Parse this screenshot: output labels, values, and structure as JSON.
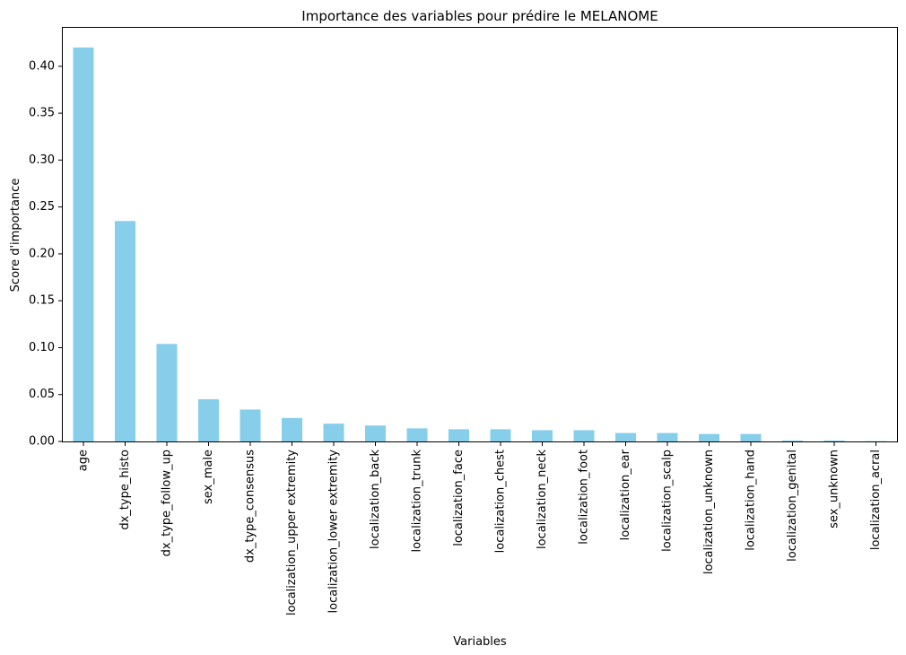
{
  "chart_data": {
    "type": "bar",
    "title": "Importance des variables pour prédire le MELANOME",
    "xlabel": "Variables",
    "ylabel": "Score d'importance",
    "categories": [
      "age",
      "dx_type_histo",
      "dx_type_follow_up",
      "sex_male",
      "dx_type_consensus",
      "localization_upper extremity",
      "localization_lower extremity",
      "localization_back",
      "localization_trunk",
      "localization_face",
      "localization_chest",
      "localization_neck",
      "localization_foot",
      "localization_ear",
      "localization_scalp",
      "localization_unknown",
      "localization_hand",
      "localization_genital",
      "sex_unknown",
      "localization_acral"
    ],
    "values": [
      0.42,
      0.235,
      0.104,
      0.045,
      0.034,
      0.025,
      0.019,
      0.017,
      0.014,
      0.013,
      0.013,
      0.012,
      0.012,
      0.009,
      0.009,
      0.008,
      0.008,
      0.001,
      0.001,
      0.0003
    ],
    "ylim": [
      0,
      0.441
    ],
    "yticks": [
      0.0,
      0.05,
      0.1,
      0.15,
      0.2,
      0.25,
      0.3,
      0.35,
      0.4
    ],
    "ytick_labels": [
      "0.00",
      "0.05",
      "0.10",
      "0.15",
      "0.20",
      "0.25",
      "0.30",
      "0.35",
      "0.40"
    ],
    "bar_color": "#87CEEB",
    "grid": false,
    "legend": "none"
  }
}
